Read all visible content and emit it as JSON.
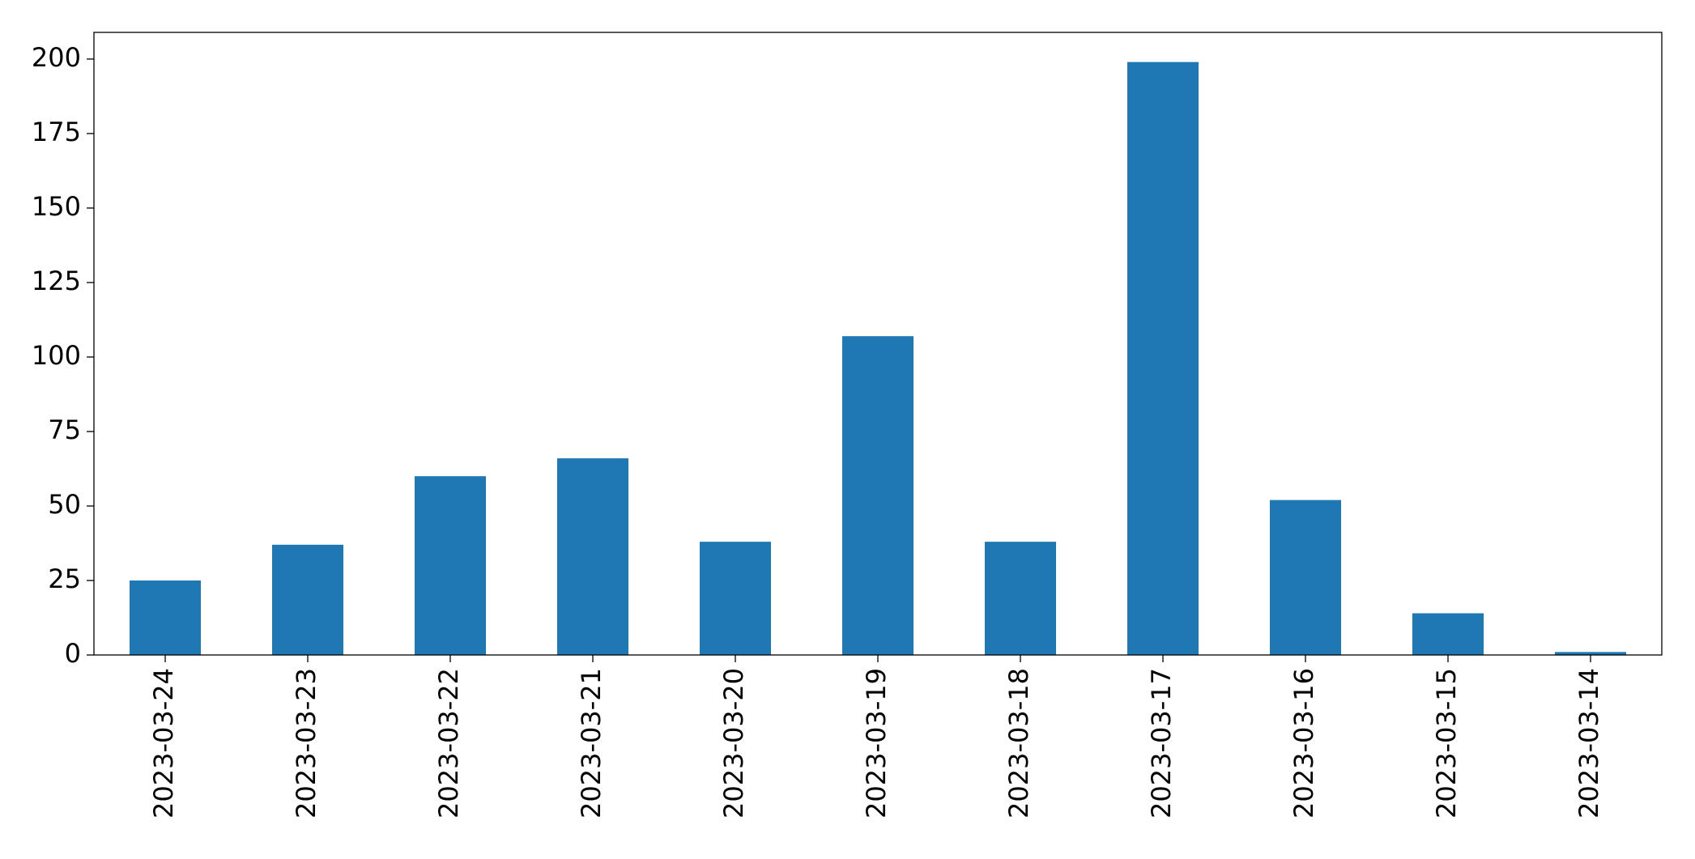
{
  "chart_data": {
    "type": "bar",
    "categories": [
      "2023-03-24",
      "2023-03-23",
      "2023-03-22",
      "2023-03-21",
      "2023-03-20",
      "2023-03-19",
      "2023-03-18",
      "2023-03-17",
      "2023-03-16",
      "2023-03-15",
      "2023-03-14"
    ],
    "values": [
      25,
      37,
      60,
      66,
      38,
      107,
      38,
      199,
      52,
      14,
      1
    ],
    "color": "#1f77b4",
    "ylim": [
      0,
      208.95
    ],
    "yticks": [
      0,
      25,
      50,
      75,
      100,
      125,
      150,
      175,
      200
    ],
    "grid": false
  }
}
